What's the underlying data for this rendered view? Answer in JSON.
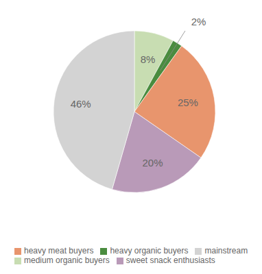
{
  "chart_data": {
    "type": "pie",
    "categories": [
      "medium organic buyers",
      "heavy organic buyers",
      "heavy meat buyers",
      "sweet snack enthusiasts",
      "mainstream"
    ],
    "values": [
      8,
      2,
      25,
      20,
      46
    ],
    "value_labels": [
      "8%",
      "2%",
      "25%",
      "20%",
      "46%"
    ],
    "data_labels": true,
    "colors": [
      "#c8ddb2",
      "#4a8c3f",
      "#e8956d",
      "#b99ab8",
      "#d3d3d3"
    ],
    "legend": "bottom"
  }
}
